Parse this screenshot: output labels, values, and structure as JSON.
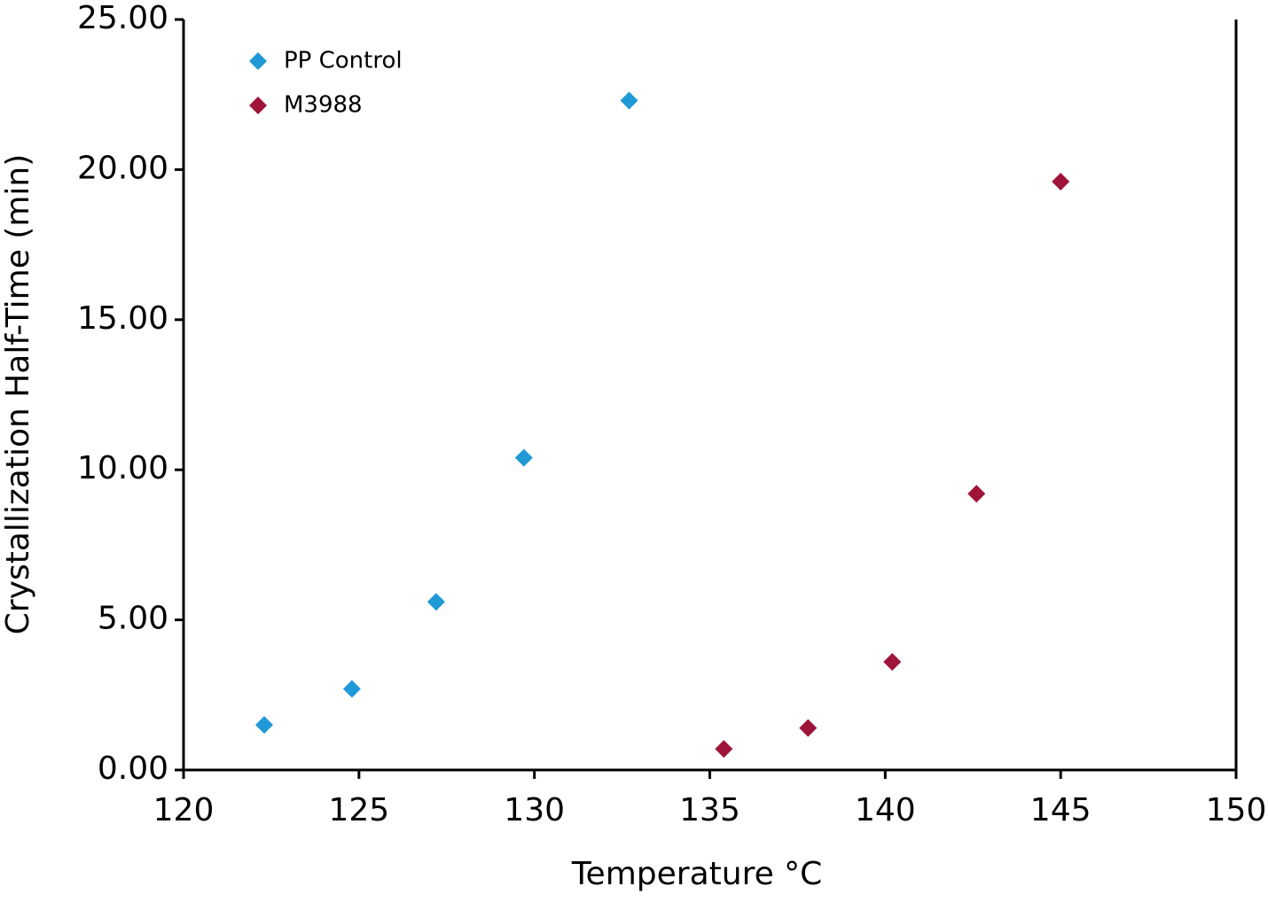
{
  "chart_data": {
    "type": "scatter",
    "x_label": "Temperature °C",
    "y_label": "Crystallization Half-Time (min)",
    "xlim": [
      120,
      150
    ],
    "xticks": [
      120,
      125,
      130,
      135,
      140,
      145,
      150
    ],
    "ylim": [
      0,
      25
    ],
    "yticks": [
      {
        "value": 0,
        "label": "0.00"
      },
      {
        "value": 5,
        "label": "5.00"
      },
      {
        "value": 10,
        "label": "10.00"
      },
      {
        "value": 15,
        "label": "15.00"
      },
      {
        "value": 20,
        "label": "20.00"
      },
      {
        "value": 25,
        "label": "25.00"
      }
    ],
    "grid": false,
    "legend": "upper left",
    "series": [
      {
        "name": "PP Control",
        "color": "#1f9ad6",
        "x": [
          122.3,
          124.8,
          127.2,
          129.7,
          132.7
        ],
        "values": [
          1.5,
          2.7,
          5.6,
          10.4,
          22.3
        ]
      },
      {
        "name": "M3988",
        "color": "#a0133a",
        "x": [
          135.4,
          137.8,
          140.2,
          142.6,
          145.0
        ],
        "values": [
          0.7,
          1.4,
          3.6,
          9.2,
          19.6
        ]
      }
    ]
  }
}
